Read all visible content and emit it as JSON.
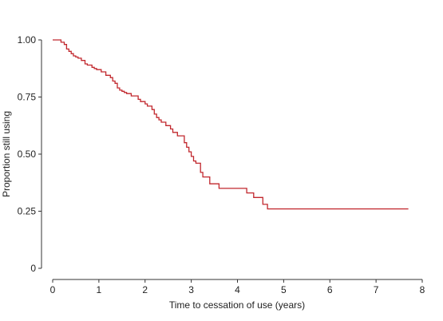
{
  "chart_data": {
    "type": "line",
    "title": "",
    "xlabel": "Time to cessation of use (years)",
    "ylabel": "Proportion still using",
    "xlim": [
      0,
      8
    ],
    "ylim": [
      0,
      1
    ],
    "x_ticks": [
      "0",
      "1",
      "2",
      "3",
      "4",
      "5",
      "6",
      "7",
      "8"
    ],
    "y_ticks": [
      "0",
      "0.25",
      "0.50",
      "0.75",
      "1.00"
    ],
    "grid": false,
    "line_color": "#c1272d",
    "series": [
      {
        "step": true,
        "x": [
          0,
          0.18,
          0.25,
          0.3,
          0.35,
          0.4,
          0.45,
          0.5,
          0.55,
          0.62,
          0.7,
          0.75,
          0.85,
          0.9,
          0.95,
          1.05,
          1.15,
          1.25,
          1.3,
          1.35,
          1.4,
          1.45,
          1.5,
          1.55,
          1.6,
          1.7,
          1.85,
          1.9,
          2.0,
          2.05,
          2.15,
          2.2,
          2.25,
          2.3,
          2.35,
          2.45,
          2.55,
          2.6,
          2.7,
          2.85,
          2.9,
          2.95,
          3.0,
          3.05,
          3.1,
          3.2,
          3.25,
          3.4,
          3.6,
          4.2,
          4.35,
          4.55,
          4.65,
          7.7
        ],
        "y": [
          1.0,
          0.99,
          0.98,
          0.96,
          0.95,
          0.94,
          0.93,
          0.925,
          0.92,
          0.91,
          0.895,
          0.89,
          0.88,
          0.875,
          0.87,
          0.86,
          0.845,
          0.835,
          0.82,
          0.81,
          0.79,
          0.78,
          0.775,
          0.77,
          0.765,
          0.755,
          0.74,
          0.73,
          0.72,
          0.71,
          0.695,
          0.675,
          0.66,
          0.65,
          0.64,
          0.625,
          0.61,
          0.595,
          0.58,
          0.55,
          0.53,
          0.51,
          0.49,
          0.47,
          0.46,
          0.42,
          0.4,
          0.37,
          0.35,
          0.33,
          0.31,
          0.28,
          0.26,
          0.26
        ]
      }
    ]
  }
}
